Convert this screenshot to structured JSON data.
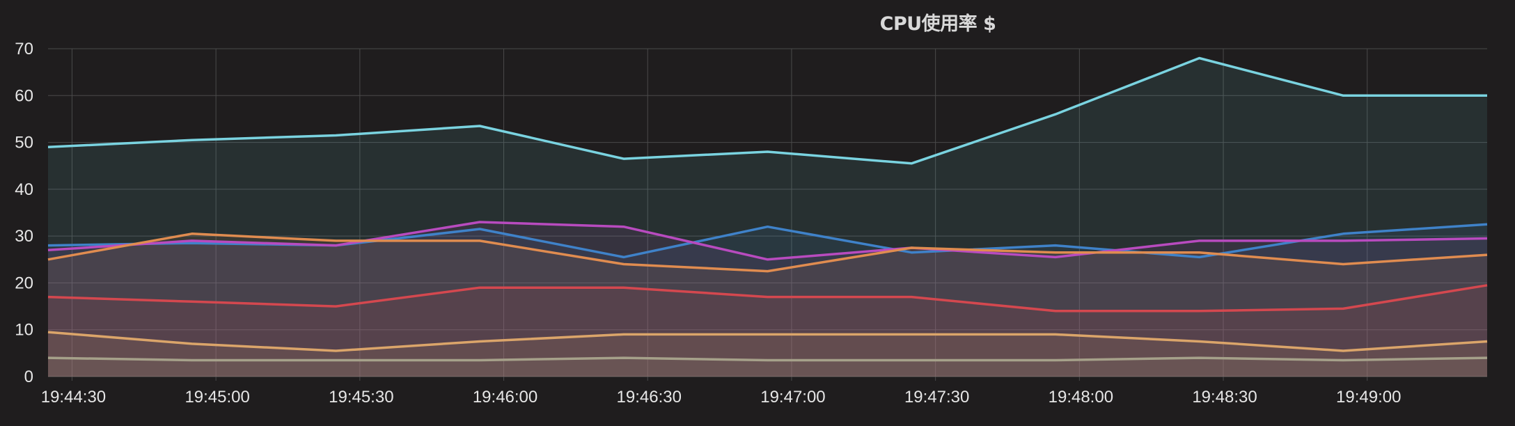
{
  "panel": {
    "title": "CPU使用率 $"
  },
  "chart_data": {
    "type": "area",
    "title": "CPU使用率 $",
    "xlabel": "",
    "ylabel": "",
    "ylim": [
      0,
      70
    ],
    "xlim": [
      "19:44:25",
      "19:49:25"
    ],
    "grid": true,
    "legend": "none",
    "y_ticks": [
      "0",
      "10",
      "20",
      "30",
      "40",
      "50",
      "60",
      "70"
    ],
    "x_ticks": [
      "19:44:30",
      "19:45:00",
      "19:45:30",
      "19:46:00",
      "19:46:30",
      "19:47:00",
      "19:47:30",
      "19:48:00",
      "19:48:30",
      "19:49:00"
    ],
    "x": [
      "19:44:25",
      "19:44:55",
      "19:45:25",
      "19:45:55",
      "19:46:25",
      "19:46:55",
      "19:47:25",
      "19:47:55",
      "19:48:25",
      "19:48:55",
      "19:49:25"
    ],
    "series": [
      {
        "color": "#7ad3e0",
        "values": [
          49,
          50.5,
          51.5,
          53.5,
          46.5,
          48,
          45.5,
          56,
          68,
          60,
          60
        ]
      },
      {
        "color": "#3f82c9",
        "values": [
          28,
          28.5,
          28,
          31.5,
          25.5,
          32,
          26.5,
          28,
          25.5,
          30.5,
          32.5
        ]
      },
      {
        "color": "#b84bbf",
        "values": [
          27,
          29,
          28,
          33,
          32,
          25,
          27.5,
          25.5,
          29,
          29,
          29.5
        ]
      },
      {
        "color": "#e08c50",
        "values": [
          25,
          30.5,
          29,
          29,
          24,
          22.5,
          27.5,
          26.5,
          26.5,
          24,
          26
        ]
      },
      {
        "color": "#d4484f",
        "values": [
          17,
          16,
          15,
          19,
          19,
          17,
          17,
          14,
          14,
          14.5,
          19.5
        ]
      },
      {
        "color": "#dba56a",
        "values": [
          9.5,
          7,
          5.5,
          7.5,
          9,
          9,
          9,
          9,
          7.5,
          5.5,
          7.5
        ]
      },
      {
        "color": "#a6a18a",
        "values": [
          4,
          3.5,
          3.5,
          3.5,
          4,
          3.5,
          3.5,
          3.5,
          4,
          3.5,
          4
        ]
      }
    ]
  }
}
